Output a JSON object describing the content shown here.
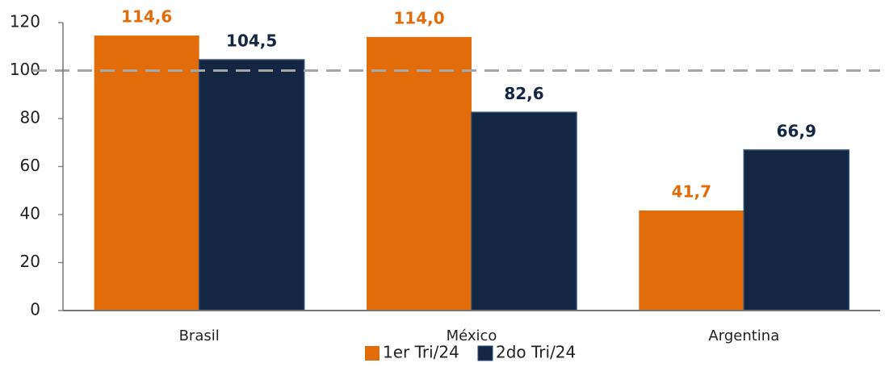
{
  "chart_data": {
    "type": "bar",
    "categories": [
      "Brasil",
      "México",
      "Argentina"
    ],
    "series": [
      {
        "name": "1er Tri/24",
        "color": "#e36c0a",
        "values": [
          114.6,
          114.0,
          41.7
        ],
        "value_labels": [
          "114,6",
          "114,0",
          "41,7"
        ]
      },
      {
        "name": "2do Tri/24",
        "color": "#132744",
        "values": [
          104.5,
          82.6,
          66.9
        ],
        "value_labels": [
          "104,5",
          "82,6",
          "66,9"
        ]
      }
    ],
    "ylim": [
      0,
      120
    ],
    "yticks": [
      0,
      20,
      40,
      60,
      80,
      100,
      120
    ],
    "reference_line": 100,
    "grid": false,
    "legend": "bottom"
  }
}
